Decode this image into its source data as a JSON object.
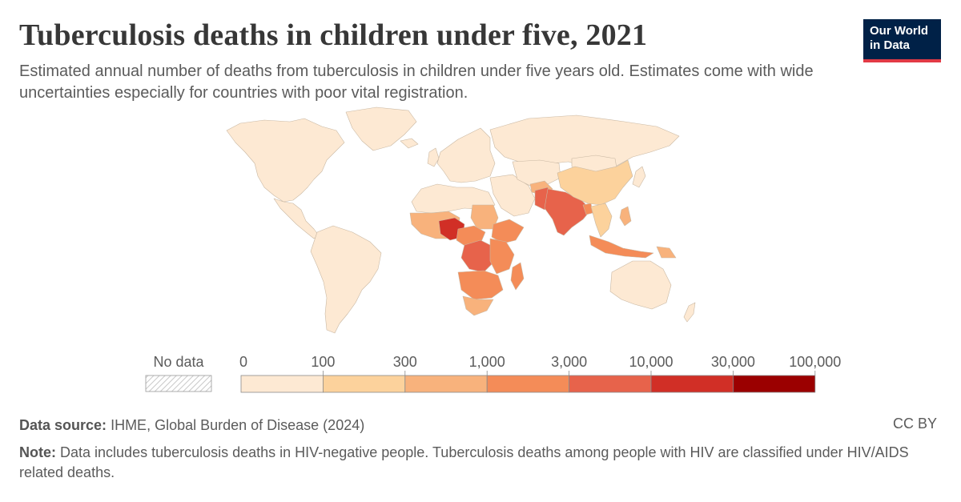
{
  "title": "Tuberculosis deaths in children under five, 2021",
  "subtitle": "Estimated annual number of deaths from tuberculosis in children under five years old. Estimates come with wide uncertainties especially for countries with poor vital registration.",
  "logo": {
    "line1": "Our World",
    "line2": "in Data",
    "bg": "#002147",
    "accent": "#e23a45"
  },
  "legend": {
    "no_data_label": "No data",
    "ticks": [
      "0",
      "100",
      "300",
      "1,000",
      "3,000",
      "10,000",
      "30,000",
      "100,000"
    ],
    "colors": [
      "#fde9d3",
      "#fcd29c",
      "#f8b27c",
      "#f48c58",
      "#e7634b",
      "#d12f26",
      "#9b0000"
    ]
  },
  "footer": {
    "source_label": "Data source:",
    "source_text": "IHME, Global Burden of Disease (2024)",
    "license": "CC BY",
    "note_label": "Note:",
    "note_text": "Data includes tuberculosis deaths in HIV-negative people. Tuberculosis deaths among people with HIV are classified under HIV/AIDS related deaths."
  },
  "regions": [
    {
      "name": "North America",
      "bin": 0
    },
    {
      "name": "Greenland",
      "bin": 0
    },
    {
      "name": "Central America",
      "bin": 0
    },
    {
      "name": "South America",
      "bin": 0
    },
    {
      "name": "Europe",
      "bin": 0
    },
    {
      "name": "Russia",
      "bin": 0
    },
    {
      "name": "North Africa",
      "bin": 0
    },
    {
      "name": "Middle East",
      "bin": 0
    },
    {
      "name": "Central Asia",
      "bin": 0
    },
    {
      "name": "China",
      "bin": 1
    },
    {
      "name": "West Africa",
      "bin": 2
    },
    {
      "name": "Nigeria",
      "bin": 5
    },
    {
      "name": "Sudan",
      "bin": 2
    },
    {
      "name": "Ethiopia",
      "bin": 3
    },
    {
      "name": "Central Africa",
      "bin": 3
    },
    {
      "name": "DR Congo",
      "bin": 4
    },
    {
      "name": "East Africa",
      "bin": 3
    },
    {
      "name": "Southern Africa",
      "bin": 3
    },
    {
      "name": "South Africa",
      "bin": 2
    },
    {
      "name": "Madagascar",
      "bin": 3
    },
    {
      "name": "Afghanistan",
      "bin": 2
    },
    {
      "name": "Pakistan",
      "bin": 4
    },
    {
      "name": "India",
      "bin": 4
    },
    {
      "name": "Bangladesh",
      "bin": 3
    },
    {
      "name": "Southeast Asia",
      "bin": 1
    },
    {
      "name": "Philippines",
      "bin": 2
    },
    {
      "name": "Indonesia",
      "bin": 3
    },
    {
      "name": "Papua New Guinea",
      "bin": 2
    },
    {
      "name": "Australia",
      "bin": 0
    },
    {
      "name": "New Zealand",
      "bin": 0
    },
    {
      "name": "Japan",
      "bin": 0
    },
    {
      "name": "Mongolia",
      "bin": 0
    },
    {
      "name": "Iceland",
      "bin": 0
    },
    {
      "name": "United Kingdom",
      "bin": 0
    }
  ]
}
